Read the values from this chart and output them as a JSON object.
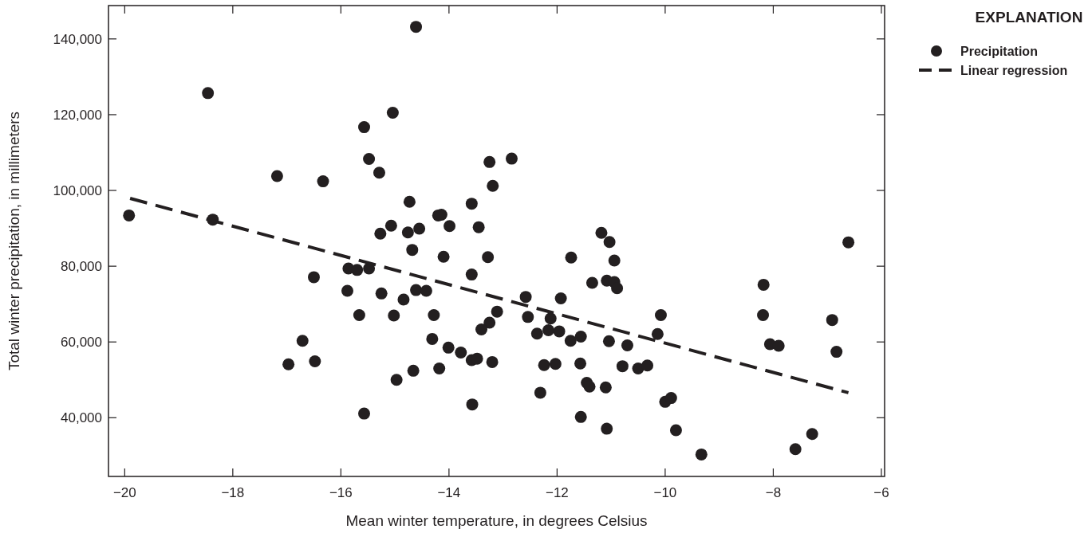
{
  "chart_data": {
    "type": "scatter",
    "xlabel": "Mean winter temperature, in degrees Celsius",
    "ylabel": "Total winter precipitation, in millimeters",
    "legend_title": "EXPLANATION",
    "legend": "top right",
    "grid": false,
    "xlim": [
      -20.3,
      -5.94
    ],
    "xticks": [
      {
        "value": -20,
        "label": "−20"
      },
      {
        "value": -18,
        "label": "−18"
      },
      {
        "value": -16,
        "label": "−16"
      },
      {
        "value": -14,
        "label": "−14"
      },
      {
        "value": -12,
        "label": "−12"
      },
      {
        "value": -10,
        "label": "−10"
      },
      {
        "value": -8,
        "label": "−8"
      },
      {
        "value": -6,
        "label": "−6"
      }
    ],
    "ylim": [
      24500,
      148800
    ],
    "yticks": [
      {
        "value": 40000,
        "label": "40,000"
      },
      {
        "value": 60000,
        "label": "60,000"
      },
      {
        "value": 80000,
        "label": "80,000"
      },
      {
        "value": 100000,
        "label": "100,000"
      },
      {
        "value": 120000,
        "label": "120,000"
      },
      {
        "value": 140000,
        "label": "140,000"
      }
    ],
    "series": [
      {
        "name": "Precipitation",
        "color": "#231f20",
        "marker": "circle",
        "x": [
          -19.92,
          -18.46,
          -18.37,
          -17.18,
          -16.33,
          -15.57,
          -15.48,
          -15.86,
          -15.7,
          -15.48,
          -16.5,
          -15.88,
          -15.66,
          -16.71,
          -16.97,
          -16.48,
          -15.57,
          -14.61,
          -15.04,
          -15.29,
          -12.84,
          -13.25,
          -13.19,
          -14.73,
          -13.58,
          -14.2,
          -14.14,
          -15.07,
          -15.27,
          -14.76,
          -14.55,
          -13.99,
          -13.45,
          -14.68,
          -14.1,
          -13.28,
          -13.58,
          -15.25,
          -14.84,
          -14.61,
          -14.42,
          -15.02,
          -14.28,
          -13.11,
          -13.25,
          -13.4,
          -14.31,
          -14.01,
          -13.78,
          -13.58,
          -13.48,
          -13.2,
          -14.66,
          -14.18,
          -14.97,
          -13.57,
          -12.58,
          -12.54,
          -11.93,
          -12.12,
          -12.37,
          -12.16,
          -11.96,
          -11.75,
          -11.56,
          -11.74,
          -11.35,
          -11.18,
          -11.03,
          -10.94,
          -11.08,
          -10.94,
          -10.89,
          -11.04,
          -10.7,
          -12.24,
          -12.03,
          -11.57,
          -11.45,
          -11.4,
          -11.1,
          -12.31,
          -11.56,
          -11.08,
          -10.79,
          -10.5,
          -10.33,
          -10.08,
          -10.14,
          -10.0,
          -9.89,
          -9.8,
          -9.33,
          -8.18,
          -8.19,
          -8.06,
          -7.9,
          -7.59,
          -7.28,
          -6.61,
          -6.91,
          -6.83
        ],
        "values": [
          93400,
          125700,
          92300,
          103800,
          102400,
          116700,
          108300,
          79400,
          79000,
          79400,
          77100,
          73500,
          67100,
          60300,
          54100,
          54900,
          41100,
          143200,
          120500,
          104700,
          108400,
          107500,
          101200,
          97000,
          96500,
          93400,
          93600,
          90700,
          88600,
          88900,
          89900,
          90600,
          90300,
          84300,
          82500,
          82400,
          77800,
          72800,
          71200,
          73700,
          73500,
          67000,
          67100,
          68000,
          65100,
          63300,
          60800,
          58500,
          57200,
          55200,
          55600,
          54700,
          52400,
          53000,
          50000,
          43500,
          71900,
          66600,
          71500,
          66200,
          62200,
          63100,
          62800,
          60300,
          61400,
          82300,
          75600,
          88800,
          86400,
          81500,
          76200,
          75800,
          74200,
          60200,
          59100,
          53900,
          54200,
          54300,
          49200,
          48200,
          48000,
          46600,
          40200,
          37100,
          53600,
          53000,
          53800,
          67100,
          62100,
          44200,
          45200,
          36700,
          30300,
          75100,
          67100,
          59400,
          59000,
          31700,
          35700,
          86300,
          65800,
          57400
        ]
      },
      {
        "name": "Linear regression",
        "type": "line",
        "color": "#231f20",
        "line_style": "dashed",
        "marker": "none",
        "x": [
          -19.9,
          -6.61
        ],
        "values": [
          97900,
          46600
        ]
      }
    ]
  }
}
